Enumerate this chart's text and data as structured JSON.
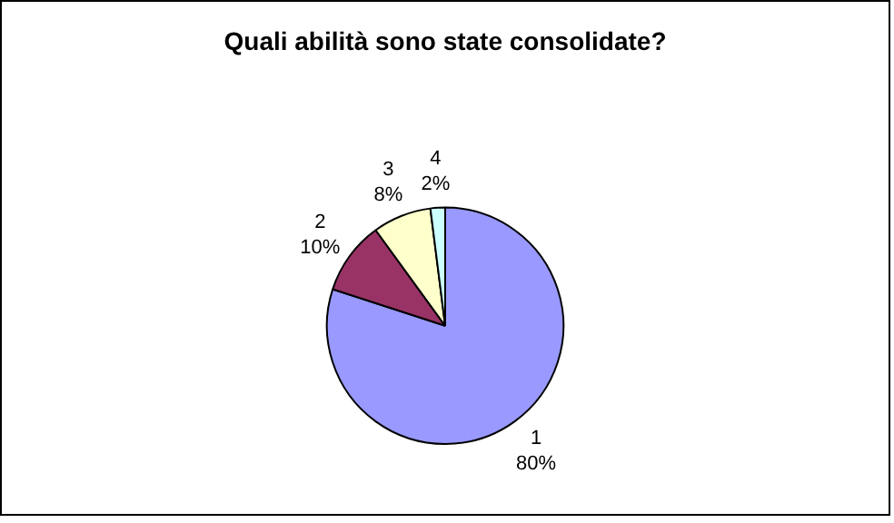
{
  "chart_data": {
    "type": "pie",
    "title": "Quali abilità sono state consolidate?",
    "categories": [
      "1",
      "2",
      "3",
      "4"
    ],
    "values": [
      80,
      10,
      8,
      2
    ],
    "value_labels": [
      "80%",
      "10%",
      "8%",
      "2%"
    ],
    "colors": [
      "#9999ff",
      "#993366",
      "#ffffcc",
      "#ccffff"
    ],
    "legend": false
  }
}
